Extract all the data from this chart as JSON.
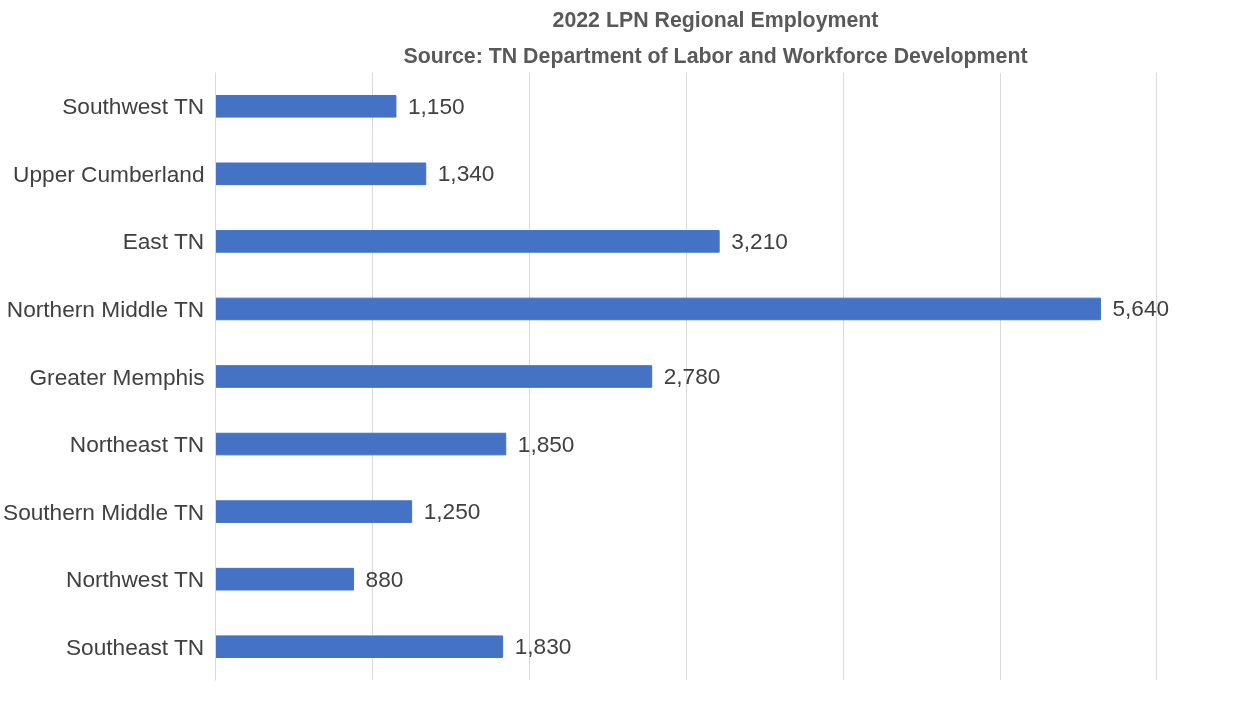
{
  "chart_data": {
    "type": "bar",
    "orientation": "horizontal",
    "title": "2022 LPN Regional Employment",
    "subtitle": "Source: TN Department of Labor and Workforce Development",
    "categories": [
      "Southwest TN",
      "Upper Cumberland",
      "East TN",
      "Northern Middle TN",
      "Greater Memphis",
      "Northeast TN",
      "Southern Middle TN",
      "Northwest TN",
      "Southeast TN"
    ],
    "values": [
      1150,
      1340,
      3210,
      5640,
      2780,
      1850,
      1250,
      880,
      1830
    ],
    "value_labels": [
      "1,150",
      "1,340",
      "3,210",
      "5,640",
      "2,780",
      "1,850",
      "1,250",
      "880",
      "1,830"
    ],
    "color": "#4472c4",
    "grid": "x",
    "tick_labels": "y"
  }
}
